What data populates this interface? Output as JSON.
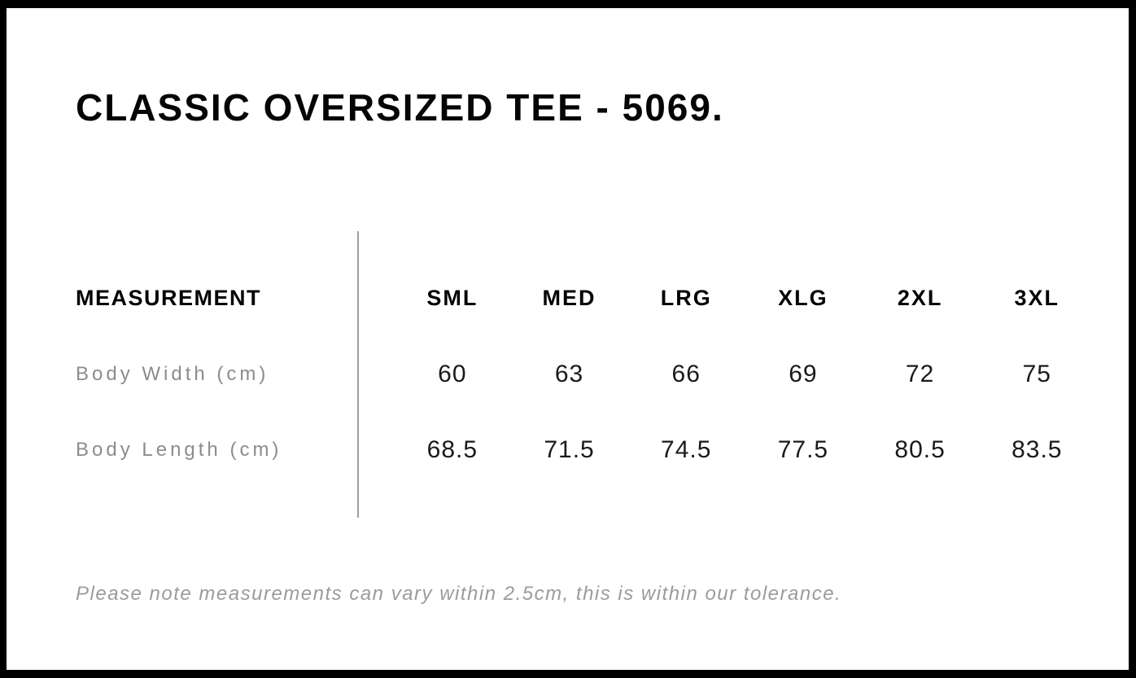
{
  "page": {
    "title": "CLASSIC OVERSIZED TEE - 5069.",
    "tolerance_note": "Please note measurements can vary within 2.5cm, this is within our tolerance."
  },
  "colors": {
    "frame_border": "#000000",
    "background": "#ffffff",
    "heading_text": "#050505",
    "value_text": "#1a1a1a",
    "label_text": "#8c8c8c",
    "note_text": "#9b9b9b",
    "divider": "#9e9e9e"
  },
  "size_chart": {
    "measurement_header": "MEASUREMENT",
    "size_headers": [
      "SML",
      "MED",
      "LRG",
      "XLG",
      "2XL",
      "3XL"
    ],
    "rows": [
      {
        "label": "Body Width (cm)",
        "values": [
          "60",
          "63",
          "66",
          "69",
          "72",
          "75"
        ]
      },
      {
        "label": "Body Length (cm)",
        "values": [
          "68.5",
          "71.5",
          "74.5",
          "77.5",
          "80.5",
          "83.5"
        ]
      }
    ]
  }
}
